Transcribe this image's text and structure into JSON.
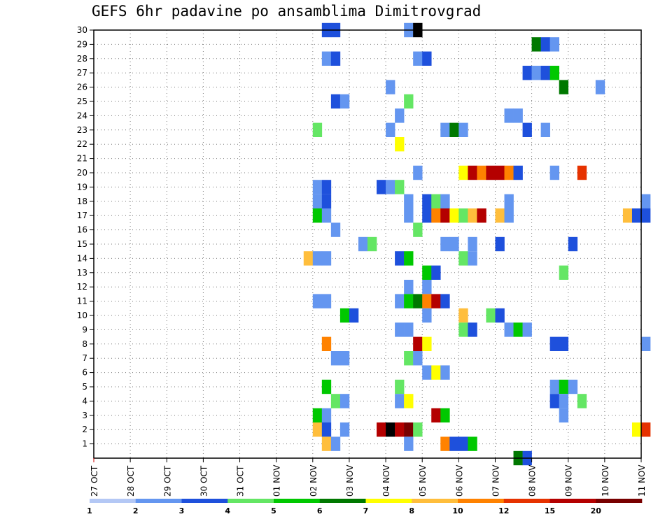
{
  "chart_data": {
    "type": "heatmap",
    "title": "GEFS 6hr padavine po ansamblima Dimitrovgrad",
    "xlabel": "",
    "ylabel": "",
    "x_tick_labels": [
      "27 OCT",
      "28 OCT",
      "29 OCT",
      "30 OCT",
      "31 OCT",
      "01 NOV",
      "02 NOV",
      "03 NOV",
      "04 NOV",
      "05 NOV",
      "06 NOV",
      "07 NOV",
      "08 NOV",
      "09 NOV",
      "10 NOV",
      "11 NOV"
    ],
    "x_range_days": [
      0,
      15
    ],
    "y_members": [
      1,
      2,
      3,
      4,
      5,
      6,
      7,
      8,
      9,
      10,
      11,
      12,
      13,
      14,
      15,
      16,
      17,
      18,
      19,
      20,
      21,
      22,
      23,
      24,
      25,
      26,
      27,
      28,
      29,
      30
    ],
    "grid": true,
    "legend_position": "bottom",
    "colorbar": {
      "labels": [
        "1",
        "2",
        "3",
        "4",
        "5",
        "6",
        "7",
        "8",
        "10",
        "12",
        "15",
        "20"
      ],
      "colors": [
        "#b4c8f5",
        "#6496f0",
        "#1e50dc",
        "#64e664",
        "#00c800",
        "#007800",
        "#ffff00",
        "#ffbe3c",
        "#ff8200",
        "#e63200",
        "#b40000",
        "#780000"
      ]
    },
    "cell_step_periods": 4,
    "cells": [
      [
        30,
        6.25,
        2
      ],
      [
        30,
        6.5,
        2
      ],
      [
        30,
        8.5,
        1
      ],
      [
        30,
        8.75,
        12
      ],
      [
        29,
        12.0,
        5
      ],
      [
        29,
        12.25,
        2
      ],
      [
        29,
        12.5,
        1
      ],
      [
        28,
        6.25,
        1
      ],
      [
        28,
        6.5,
        2
      ],
      [
        28,
        8.75,
        1
      ],
      [
        28,
        9.0,
        2
      ],
      [
        27,
        11.75,
        2
      ],
      [
        27,
        12.0,
        1
      ],
      [
        27,
        12.25,
        2
      ],
      [
        27,
        12.5,
        4
      ],
      [
        26,
        8.0,
        1
      ],
      [
        26,
        12.75,
        5
      ],
      [
        26,
        13.75,
        1
      ],
      [
        25,
        6.5,
        2
      ],
      [
        25,
        6.75,
        1
      ],
      [
        25,
        8.5,
        3
      ],
      [
        24,
        8.25,
        1
      ],
      [
        24,
        11.25,
        1
      ],
      [
        24,
        11.5,
        1
      ],
      [
        23,
        6.0,
        3
      ],
      [
        23,
        8.0,
        1
      ],
      [
        23,
        9.5,
        1
      ],
      [
        23,
        9.75,
        5
      ],
      [
        23,
        10.0,
        1
      ],
      [
        23,
        11.75,
        2
      ],
      [
        23,
        12.25,
        1
      ],
      [
        22,
        8.25,
        6
      ],
      [
        20,
        8.75,
        1
      ],
      [
        20,
        10.0,
        6
      ],
      [
        20,
        10.25,
        10
      ],
      [
        20,
        10.5,
        8
      ],
      [
        20,
        10.75,
        10
      ],
      [
        20,
        11.0,
        10
      ],
      [
        20,
        11.25,
        8
      ],
      [
        20,
        11.5,
        2
      ],
      [
        20,
        12.5,
        1
      ],
      [
        20,
        13.25,
        9
      ],
      [
        19,
        6.0,
        1
      ],
      [
        19,
        6.25,
        2
      ],
      [
        19,
        7.75,
        2
      ],
      [
        19,
        8.0,
        1
      ],
      [
        19,
        8.25,
        3
      ],
      [
        18,
        6.0,
        1
      ],
      [
        18,
        6.25,
        2
      ],
      [
        18,
        8.5,
        1
      ],
      [
        18,
        9.0,
        2
      ],
      [
        18,
        9.25,
        3
      ],
      [
        18,
        9.5,
        1
      ],
      [
        18,
        11.25,
        1
      ],
      [
        18,
        15.0,
        1
      ],
      [
        17,
        6.0,
        4
      ],
      [
        17,
        6.25,
        1
      ],
      [
        17,
        8.5,
        1
      ],
      [
        17,
        9.0,
        2
      ],
      [
        17,
        9.25,
        8
      ],
      [
        17,
        9.5,
        10
      ],
      [
        17,
        9.75,
        6
      ],
      [
        17,
        10.0,
        3
      ],
      [
        17,
        10.25,
        7
      ],
      [
        17,
        10.5,
        10
      ],
      [
        17,
        11.0,
        7
      ],
      [
        17,
        11.25,
        1
      ],
      [
        17,
        14.5,
        7
      ],
      [
        17,
        14.75,
        2
      ],
      [
        17,
        15.0,
        2
      ],
      [
        16,
        6.5,
        1
      ],
      [
        16,
        8.75,
        3
      ],
      [
        15,
        7.25,
        1
      ],
      [
        15,
        7.5,
        3
      ],
      [
        15,
        9.5,
        1
      ],
      [
        15,
        9.75,
        1
      ],
      [
        15,
        10.25,
        1
      ],
      [
        15,
        11.0,
        2
      ],
      [
        15,
        13.0,
        2
      ],
      [
        14,
        5.75,
        7
      ],
      [
        14,
        6.0,
        1
      ],
      [
        14,
        6.25,
        1
      ],
      [
        14,
        8.25,
        2
      ],
      [
        14,
        8.5,
        4
      ],
      [
        14,
        10.0,
        3
      ],
      [
        14,
        10.25,
        1
      ],
      [
        13,
        9.0,
        4
      ],
      [
        13,
        9.25,
        2
      ],
      [
        13,
        12.75,
        3
      ],
      [
        12,
        8.5,
        1
      ],
      [
        12,
        9.0,
        1
      ],
      [
        11,
        6.0,
        1
      ],
      [
        11,
        6.25,
        1
      ],
      [
        11,
        8.25,
        1
      ],
      [
        11,
        8.5,
        4
      ],
      [
        11,
        8.75,
        5
      ],
      [
        11,
        9.0,
        8
      ],
      [
        11,
        9.25,
        10
      ],
      [
        11,
        9.5,
        2
      ],
      [
        10,
        6.75,
        4
      ],
      [
        10,
        7.0,
        2
      ],
      [
        10,
        9.0,
        1
      ],
      [
        10,
        10.0,
        7
      ],
      [
        10,
        10.75,
        3
      ],
      [
        10,
        11.0,
        2
      ],
      [
        9,
        8.25,
        1
      ],
      [
        9,
        8.5,
        1
      ],
      [
        9,
        10.0,
        3
      ],
      [
        9,
        10.25,
        2
      ],
      [
        9,
        11.25,
        1
      ],
      [
        9,
        11.5,
        4
      ],
      [
        9,
        11.75,
        1
      ],
      [
        8,
        6.25,
        8
      ],
      [
        8,
        8.75,
        10
      ],
      [
        8,
        9.0,
        6
      ],
      [
        8,
        12.5,
        2
      ],
      [
        8,
        12.75,
        2
      ],
      [
        8,
        15.0,
        1
      ],
      [
        7,
        6.5,
        1
      ],
      [
        7,
        6.75,
        1
      ],
      [
        7,
        8.5,
        3
      ],
      [
        7,
        8.75,
        1
      ],
      [
        6,
        9.0,
        1
      ],
      [
        6,
        9.25,
        6
      ],
      [
        6,
        9.5,
        1
      ],
      [
        5,
        6.25,
        4
      ],
      [
        5,
        8.25,
        3
      ],
      [
        5,
        12.5,
        1
      ],
      [
        5,
        12.75,
        4
      ],
      [
        5,
        13.0,
        1
      ],
      [
        4,
        6.5,
        3
      ],
      [
        4,
        6.75,
        1
      ],
      [
        4,
        8.25,
        1
      ],
      [
        4,
        8.5,
        6
      ],
      [
        4,
        12.5,
        2
      ],
      [
        4,
        12.75,
        1
      ],
      [
        4,
        13.25,
        3
      ],
      [
        3,
        6.0,
        4
      ],
      [
        3,
        6.25,
        1
      ],
      [
        3,
        9.25,
        10
      ],
      [
        3,
        9.5,
        4
      ],
      [
        3,
        12.75,
        1
      ],
      [
        2,
        6.0,
        7
      ],
      [
        2,
        6.25,
        2
      ],
      [
        2,
        6.75,
        1
      ],
      [
        2,
        7.75,
        10
      ],
      [
        2,
        8.0,
        12
      ],
      [
        2,
        8.25,
        10
      ],
      [
        2,
        8.5,
        11
      ],
      [
        2,
        8.75,
        3
      ],
      [
        2,
        14.75,
        6
      ],
      [
        2,
        15.0,
        9
      ],
      [
        1,
        6.25,
        7
      ],
      [
        1,
        6.5,
        1
      ],
      [
        1,
        8.5,
        1
      ],
      [
        1,
        9.5,
        8
      ],
      [
        1,
        9.75,
        2
      ],
      [
        1,
        10.0,
        2
      ],
      [
        1,
        10.25,
        4
      ],
      [
        0,
        11.5,
        5
      ],
      [
        0,
        11.75,
        2
      ]
    ]
  }
}
